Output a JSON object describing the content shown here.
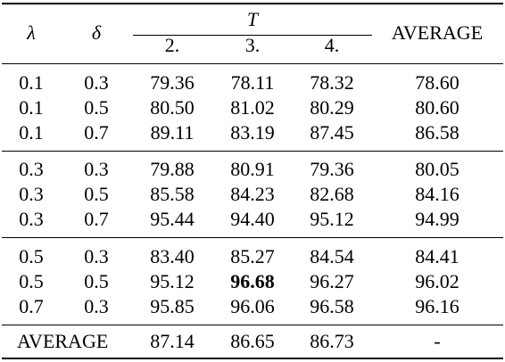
{
  "table": {
    "header": {
      "lambda": "λ",
      "delta": "δ",
      "group_label": "T",
      "t_columns": [
        "2.",
        "3.",
        "4."
      ],
      "average": "AVERAGE"
    },
    "groups": [
      [
        {
          "lambda": "0.1",
          "delta": "0.3",
          "t2": "79.36",
          "t3": "78.11",
          "t4": "78.32",
          "avg": "78.60"
        },
        {
          "lambda": "0.1",
          "delta": "0.5",
          "t2": "80.50",
          "t3": "81.02",
          "t4": "80.29",
          "avg": "80.60"
        },
        {
          "lambda": "0.1",
          "delta": "0.7",
          "t2": "89.11",
          "t3": "83.19",
          "t4": "87.45",
          "avg": "86.58"
        }
      ],
      [
        {
          "lambda": "0.3",
          "delta": "0.3",
          "t2": "79.88",
          "t3": "80.91",
          "t4": "79.36",
          "avg": "80.05"
        },
        {
          "lambda": "0.3",
          "delta": "0.5",
          "t2": "85.58",
          "t3": "84.23",
          "t4": "82.68",
          "avg": "84.16"
        },
        {
          "lambda": "0.3",
          "delta": "0.7",
          "t2": "95.44",
          "t3": "94.40",
          "t4": "95.12",
          "avg": "94.99"
        }
      ],
      [
        {
          "lambda": "0.5",
          "delta": "0.3",
          "t2": "83.40",
          "t3": "85.27",
          "t4": "84.54",
          "avg": "84.41"
        },
        {
          "lambda": "0.5",
          "delta": "0.5",
          "t2": "95.12",
          "t3": "96.68",
          "t4": "96.27",
          "avg": "96.02",
          "bold": "t3"
        },
        {
          "lambda": "0.7",
          "delta": "0.3",
          "t2": "95.85",
          "t3": "96.06",
          "t4": "96.58",
          "avg": "96.16"
        }
      ]
    ],
    "footer": {
      "label": "AVERAGE",
      "t2": "87.14",
      "t3": "86.65",
      "t4": "86.73",
      "avg": "-"
    }
  }
}
